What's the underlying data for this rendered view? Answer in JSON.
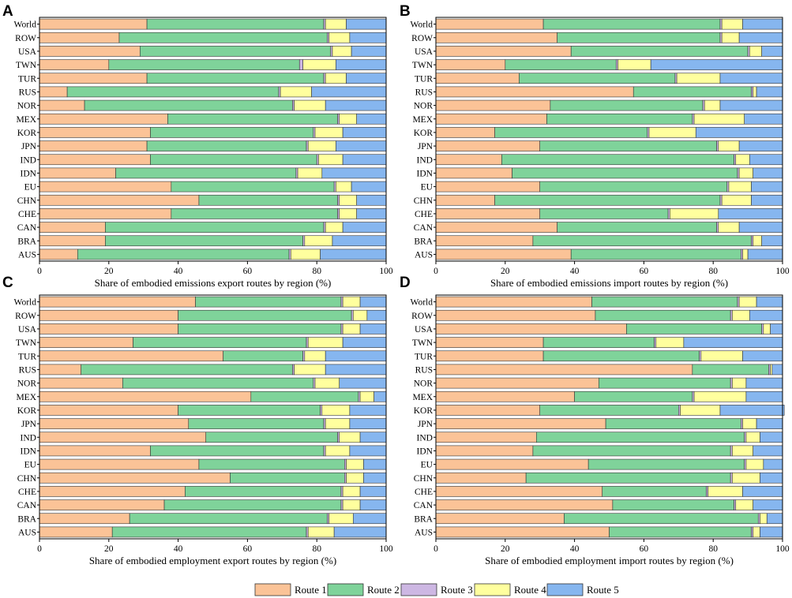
{
  "colors": {
    "Route 1": "#FBC397",
    "Route 2": "#7FD39A",
    "Route 3": "#CDB7E3",
    "Route 4": "#FFFF9E",
    "Route 5": "#86B6EF"
  },
  "legend": {
    "items": [
      "Route 1",
      "Route 2",
      "Route 3",
      "Route 4",
      "Route 5"
    ]
  },
  "chart_data": [
    {
      "panel": "A",
      "type": "bar",
      "orientation": "horizontal",
      "stacked": true,
      "xlabel": "Share of embodied emissions export routes by region (%)",
      "xlim": [
        0,
        100
      ],
      "xticks": [
        0,
        20,
        40,
        60,
        80,
        100
      ],
      "categories": [
        "World",
        "ROW",
        "USA",
        "TWN",
        "TUR",
        "RUS",
        "NOR",
        "MEX",
        "KOR",
        "JPN",
        "IND",
        "IDN",
        "EU",
        "CHN",
        "CHE",
        "CAN",
        "BRA",
        "AUS"
      ],
      "series": [
        {
          "name": "Route 1",
          "values": [
            31,
            23,
            29,
            20,
            31,
            8,
            13,
            37,
            32,
            31,
            32,
            22,
            38,
            46,
            38,
            19,
            19,
            11
          ]
        },
        {
          "name": "Route 2",
          "values": [
            51,
            60,
            55,
            55,
            51,
            61,
            60,
            49,
            47,
            46,
            48,
            52,
            47,
            40,
            48,
            63,
            57,
            61
          ]
        },
        {
          "name": "Route 3",
          "values": [
            0.5,
            0.5,
            0.5,
            1,
            0.5,
            0.5,
            0.5,
            0.5,
            0.5,
            0.5,
            0.5,
            0.5,
            0.5,
            0.5,
            0.5,
            0.5,
            0.5,
            0.5
          ]
        },
        {
          "name": "Route 4",
          "values": [
            6,
            6,
            5.5,
            9.5,
            6,
            9,
            9,
            5,
            8,
            8,
            7,
            7,
            4.5,
            5,
            5,
            5,
            8,
            8.5
          ]
        },
        {
          "name": "Route 5",
          "values": [
            11.5,
            10.5,
            10,
            14.5,
            11.5,
            21.5,
            17.5,
            8.5,
            12.5,
            14.5,
            12.5,
            18.5,
            10,
            8.5,
            8.5,
            12.5,
            15.5,
            19
          ]
        }
      ]
    },
    {
      "panel": "B",
      "type": "bar",
      "orientation": "horizontal",
      "stacked": true,
      "xlabel": "Share of embodied emissions import routes by region (%)",
      "xlim": [
        0,
        100
      ],
      "xticks": [
        0,
        20,
        40,
        60,
        80,
        100
      ],
      "categories": [
        "World",
        "ROW",
        "USA",
        "TWN",
        "TUR",
        "RUS",
        "NOR",
        "MEX",
        "KOR",
        "JPN",
        "IND",
        "IDN",
        "EU",
        "CHN",
        "CHE",
        "CAN",
        "BRA",
        "AUS"
      ],
      "series": [
        {
          "name": "Route 1",
          "values": [
            31,
            35,
            39,
            20,
            24,
            57,
            33,
            32,
            17,
            30,
            19,
            22,
            30,
            17,
            30,
            35,
            28,
            39
          ]
        },
        {
          "name": "Route 2",
          "values": [
            51,
            47,
            51,
            32,
            45,
            34,
            44,
            42,
            44,
            51,
            67,
            65,
            54,
            65,
            37,
            46,
            63,
            49
          ]
        },
        {
          "name": "Route 3",
          "values": [
            0.5,
            0.5,
            0.5,
            0.5,
            0.5,
            0.5,
            0.5,
            0.5,
            0.5,
            0.5,
            0.5,
            0.5,
            0.5,
            0.5,
            0.5,
            0.5,
            0.5,
            0.5
          ]
        },
        {
          "name": "Route 4",
          "values": [
            6,
            5,
            3.5,
            9.5,
            12.5,
            1,
            4.5,
            14.5,
            13.5,
            6,
            4,
            4,
            6.5,
            8.5,
            14,
            6,
            2.5,
            1.5
          ]
        },
        {
          "name": "Route 5",
          "values": [
            11.5,
            12.5,
            6,
            38,
            18,
            7.5,
            18,
            11,
            25,
            12.5,
            9.5,
            8.5,
            9,
            9,
            18.5,
            12.5,
            6,
            10
          ]
        }
      ]
    },
    {
      "panel": "C",
      "type": "bar",
      "orientation": "horizontal",
      "stacked": true,
      "xlabel": "Share of embodied employment export routes by region (%)",
      "xlim": [
        0,
        100
      ],
      "xticks": [
        0,
        20,
        40,
        60,
        80,
        100
      ],
      "categories": [
        "World",
        "ROW",
        "USA",
        "TWN",
        "TUR",
        "RUS",
        "NOR",
        "MEX",
        "KOR",
        "JPN",
        "IND",
        "IDN",
        "EU",
        "CHN",
        "CHE",
        "CAN",
        "BRA",
        "AUS"
      ],
      "series": [
        {
          "name": "Route 1",
          "values": [
            45,
            40,
            40,
            27,
            53,
            12,
            24,
            61,
            40,
            43,
            48,
            32,
            46,
            55,
            42,
            36,
            26,
            21
          ]
        },
        {
          "name": "Route 2",
          "values": [
            42,
            50,
            47,
            50,
            23,
            61,
            55,
            31,
            41,
            39,
            38,
            50,
            42,
            33,
            45,
            51,
            57,
            56
          ]
        },
        {
          "name": "Route 3",
          "values": [
            0.5,
            0.5,
            0.5,
            0.5,
            0.5,
            0.5,
            0.5,
            0.5,
            0.5,
            0.5,
            0.5,
            0.5,
            0.5,
            0.5,
            0.5,
            0.5,
            0.5,
            0.5
          ]
        },
        {
          "name": "Route 4",
          "values": [
            5,
            4,
            5,
            10,
            6,
            9,
            7,
            4,
            8,
            7,
            6,
            7,
            5,
            5,
            5,
            5,
            7,
            7.5
          ]
        },
        {
          "name": "Route 5",
          "values": [
            7.5,
            5.5,
            7.5,
            12.5,
            17.5,
            17.5,
            13.5,
            3.5,
            10.5,
            10.5,
            7.5,
            10.5,
            6.5,
            6.5,
            7.5,
            7.5,
            9.5,
            15
          ]
        }
      ]
    },
    {
      "panel": "D",
      "type": "bar",
      "orientation": "horizontal",
      "stacked": true,
      "xlabel": "Share of embodied employment import routes by region (%)",
      "xlim": [
        0,
        100
      ],
      "xticks": [
        0,
        20,
        40,
        60,
        80,
        100
      ],
      "categories": [
        "World",
        "ROW",
        "USA",
        "TWN",
        "TUR",
        "RUS",
        "NOR",
        "MEX",
        "KOR",
        "JPN",
        "IND",
        "IDN",
        "EU",
        "CHN",
        "CHE",
        "CAN",
        "BRA",
        "AUS"
      ],
      "series": [
        {
          "name": "Route 1",
          "values": [
            45,
            46,
            55,
            31,
            31,
            74,
            47,
            40,
            30,
            49,
            29,
            28,
            44,
            26,
            48,
            51,
            37,
            50
          ]
        },
        {
          "name": "Route 2",
          "values": [
            42,
            39,
            39,
            32,
            45,
            22,
            38,
            34,
            40,
            39,
            60,
            57,
            45,
            59,
            30,
            35,
            56,
            41
          ]
        },
        {
          "name": "Route 3",
          "values": [
            0.5,
            0.5,
            0.5,
            0.5,
            0.5,
            0.5,
            0.5,
            0.5,
            0.5,
            0.5,
            0.5,
            0.5,
            0.5,
            0.5,
            0.5,
            0.5,
            0.5,
            0.5
          ]
        },
        {
          "name": "Route 4",
          "values": [
            5,
            5,
            2,
            8,
            12,
            0.5,
            4,
            15,
            11.5,
            4,
            4,
            6,
            5,
            8,
            10,
            5,
            2,
            2
          ]
        },
        {
          "name": "Route 5",
          "values": [
            7.5,
            9.5,
            3.5,
            28.5,
            11.5,
            3,
            10.5,
            10.5,
            18.5,
            7.5,
            6.5,
            8.5,
            5.5,
            6.5,
            11.5,
            8.5,
            4.5,
            6.5
          ]
        }
      ]
    }
  ]
}
